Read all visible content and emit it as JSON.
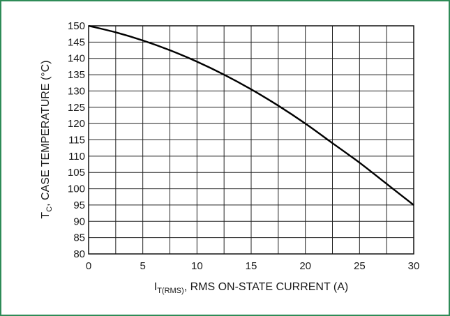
{
  "chart_data": {
    "type": "line",
    "xlabel_main": "I",
    "xlabel_sub": "T(RMS)",
    "xlabel_rest": ", RMS ON-STATE CURRENT (A)",
    "ylabel_main": "T",
    "ylabel_sub": "C",
    "ylabel_rest": ", CASE TEMPERATURE (°C)",
    "xlim": [
      0,
      30
    ],
    "ylim": [
      80,
      150
    ],
    "x_ticks": [
      0,
      5,
      10,
      15,
      20,
      25,
      30
    ],
    "x_tick_labels": [
      "0",
      "5",
      "10",
      "15",
      "20",
      "25",
      "30"
    ],
    "y_ticks": [
      80,
      85,
      90,
      95,
      100,
      105,
      110,
      115,
      120,
      125,
      130,
      135,
      140,
      145,
      150
    ],
    "y_tick_labels": [
      "80",
      "85",
      "90",
      "95",
      "100",
      "105",
      "110",
      "115",
      "120",
      "125",
      "130",
      "135",
      "140",
      "145",
      "150"
    ],
    "x_grid_step": 2.5,
    "y_grid_step": 5,
    "grid": true,
    "series": [
      {
        "x": [
          0,
          2.5,
          5,
          7.5,
          10,
          12.5,
          15,
          17.5,
          20,
          22.5,
          25,
          27.5,
          30
        ],
        "y": [
          150,
          148,
          145.5,
          142.5,
          139,
          135,
          130.5,
          125.5,
          120,
          114,
          108,
          101.5,
          95
        ]
      }
    ],
    "colors": {
      "curve": "#000000",
      "frame": "#2e8b57"
    }
  }
}
